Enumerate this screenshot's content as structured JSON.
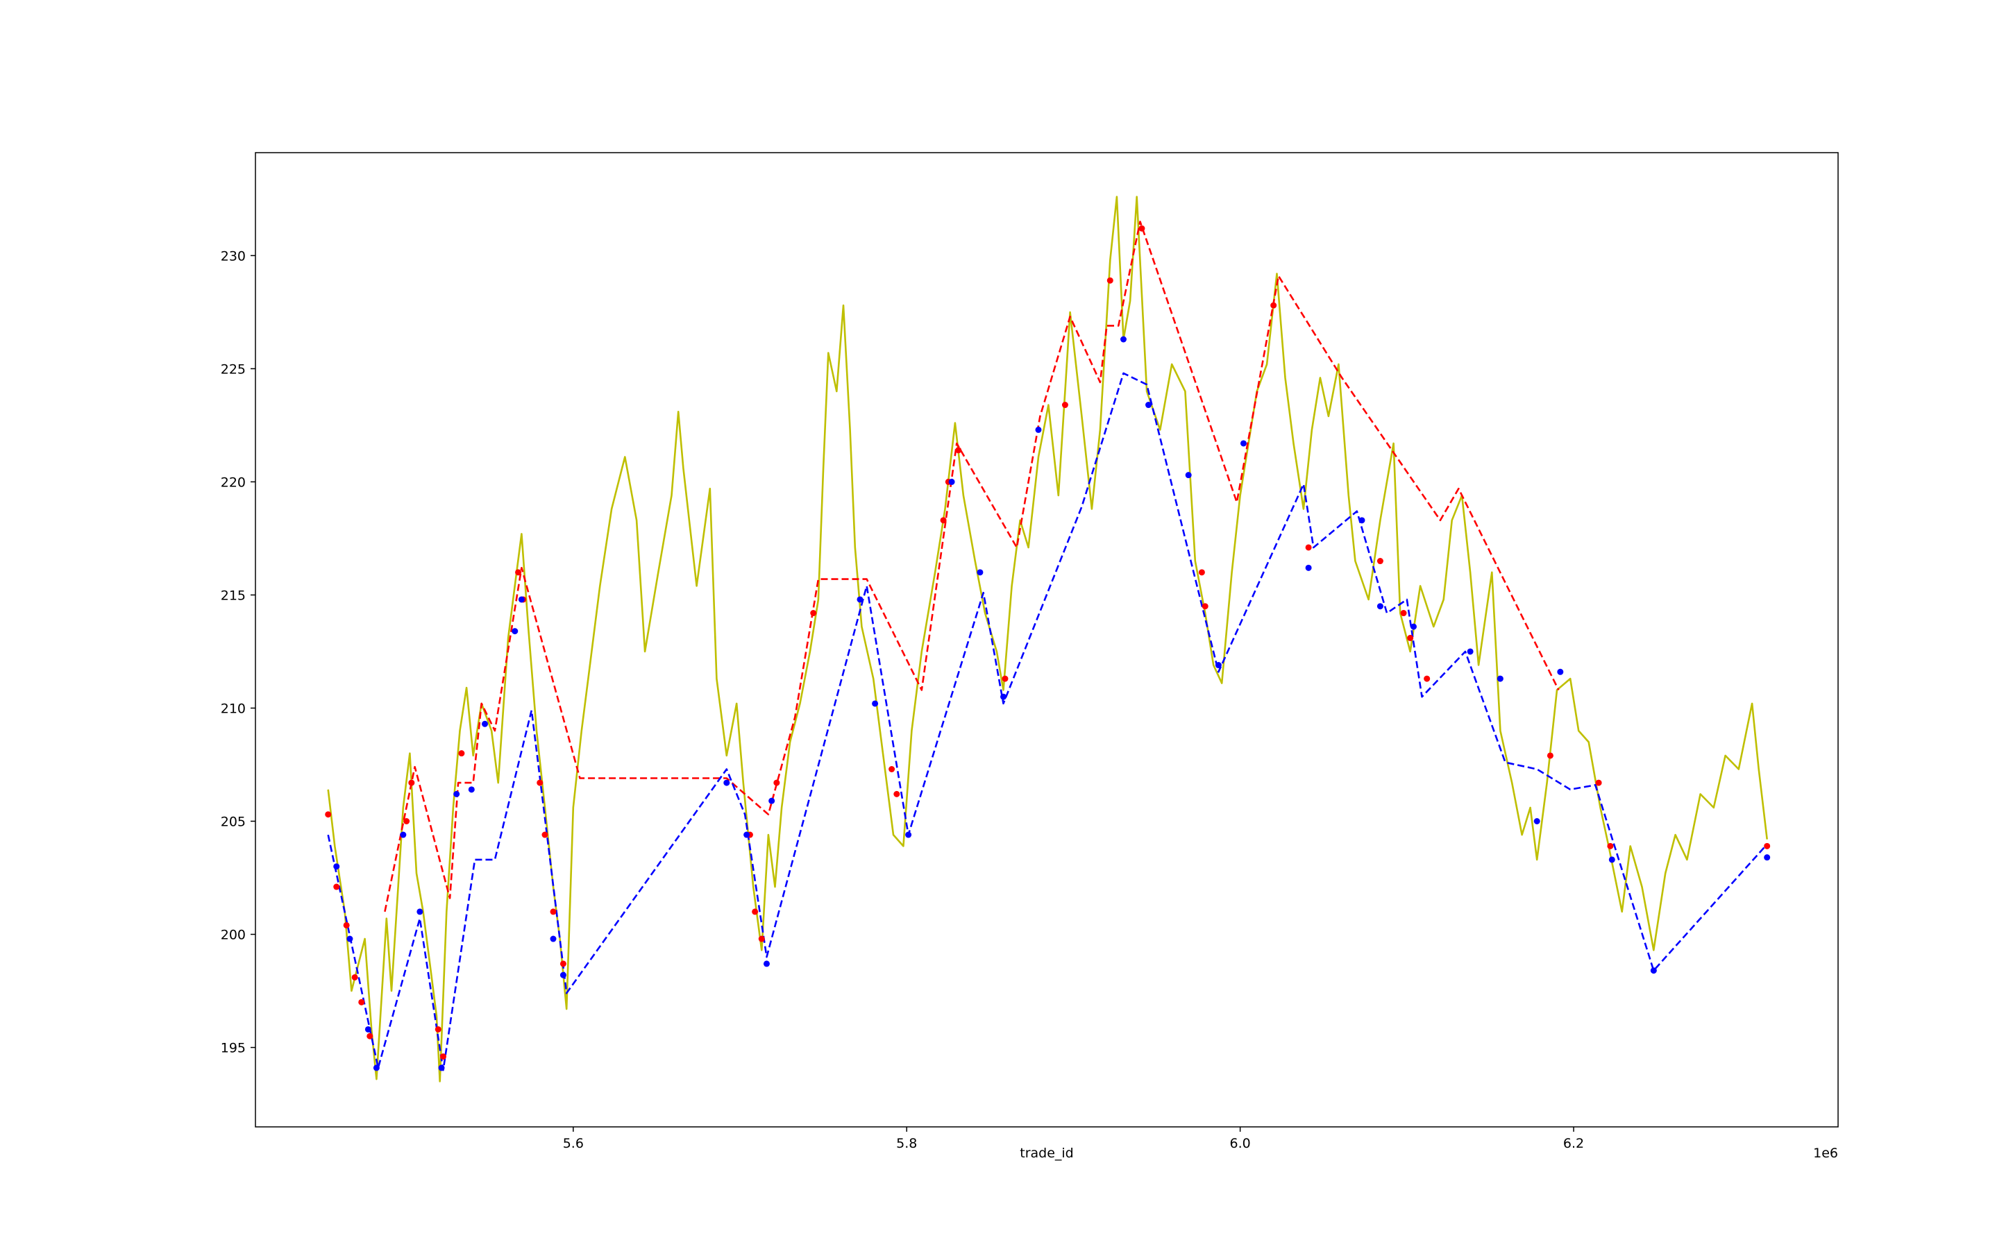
{
  "chart_data": {
    "type": "line",
    "xlabel": "trade_id",
    "x_offset_label": "1e6",
    "xlim": [
      5409400,
      6358600
    ],
    "ylim": [
      191.49,
      234.55
    ],
    "xticks": [
      {
        "value": 5600000,
        "label": "5.6"
      },
      {
        "value": 5800000,
        "label": "5.8"
      },
      {
        "value": 6000000,
        "label": "6.0"
      },
      {
        "value": 6200000,
        "label": "6.2"
      }
    ],
    "yticks": [
      195,
      200,
      205,
      210,
      215,
      220,
      225,
      230
    ],
    "grid": false,
    "series": [
      {
        "type": "line",
        "dashed": false,
        "color": "#bfbf00",
        "x": [
          5453000,
          5457000,
          5463000,
          5467000,
          5475000,
          5479000,
          5482000,
          5488000,
          5491000,
          5495000,
          5498000,
          5502000,
          5506000,
          5510000,
          5514000,
          5518000,
          5520000,
          5524000,
          5528000,
          5532000,
          5536000,
          5540000,
          5545000,
          5551000,
          5555000,
          5561000,
          5566000,
          5569000,
          5573000,
          5578000,
          5583000,
          5588000,
          5592000,
          5596000,
          5600000,
          5605000,
          5609000,
          5616000,
          5623000,
          5631000,
          5638000,
          5643000,
          5651000,
          5659000,
          5663000,
          5666000,
          5674000,
          5682000,
          5686000,
          5692000,
          5698000,
          5702000,
          5708000,
          5713000,
          5717000,
          5721000,
          5725000,
          5730000,
          5736000,
          5742000,
          5747000,
          5750000,
          5753000,
          5758000,
          5762000,
          5766000,
          5769000,
          5773000,
          5780000,
          5788000,
          5792000,
          5798000,
          5803000,
          5809000,
          5817000,
          5823000,
          5829000,
          5834000,
          5841000,
          5847000,
          5854000,
          5858000,
          5863000,
          5868000,
          5873000,
          5879000,
          5885000,
          5891000,
          5895000,
          5898000,
          5905000,
          5911000,
          5916000,
          5922000,
          5926000,
          5930000,
          5934000,
          5938000,
          5944000,
          5952000,
          5959000,
          5967000,
          5973000,
          5979000,
          5984000,
          5989000,
          5995000,
          6000000,
          6005000,
          6010000,
          6016000,
          6022000,
          6027000,
          6032000,
          6038000,
          6043000,
          6048000,
          6053000,
          6059000,
          6065000,
          6069000,
          6077000,
          6084000,
          6092000,
          6096000,
          6102000,
          6108000,
          6116000,
          6122000,
          6127000,
          6133000,
          6138000,
          6143000,
          6151000,
          6156000,
          6163000,
          6169000,
          6174000,
          6178000,
          6184000,
          6190000,
          6198000,
          6203000,
          6209000,
          6216000,
          6221000,
          6229000,
          6234000,
          6241000,
          6248000,
          6255000,
          6261000,
          6268000,
          6276000,
          6284000,
          6291000,
          6299000,
          6307000,
          6311000,
          6316000
        ],
        "values": [
          206.4,
          203.9,
          201.0,
          197.5,
          199.8,
          195.8,
          193.6,
          200.7,
          197.5,
          202.1,
          205.6,
          208.0,
          202.7,
          201.0,
          198.7,
          196.4,
          193.5,
          201.0,
          205.6,
          209.0,
          210.9,
          207.9,
          210.2,
          209.0,
          206.7,
          213.1,
          216.0,
          217.7,
          213.6,
          209.0,
          205.6,
          202.1,
          199.8,
          196.7,
          205.6,
          209.0,
          211.3,
          215.4,
          218.8,
          221.1,
          218.3,
          212.5,
          216.0,
          219.4,
          223.1,
          220.6,
          215.4,
          219.7,
          211.3,
          207.9,
          210.2,
          206.7,
          202.1,
          199.3,
          204.4,
          202.1,
          205.6,
          208.5,
          210.2,
          212.5,
          214.8,
          220.6,
          225.7,
          224.0,
          227.8,
          222.3,
          217.1,
          213.6,
          211.3,
          206.7,
          204.4,
          203.9,
          209.0,
          212.5,
          216.0,
          218.8,
          222.6,
          219.4,
          216.5,
          214.2,
          212.5,
          210.8,
          215.4,
          218.3,
          217.1,
          221.1,
          223.4,
          219.4,
          224.0,
          227.5,
          222.9,
          218.8,
          222.3,
          229.8,
          232.6,
          226.3,
          228.0,
          232.6,
          224.0,
          222.3,
          225.2,
          224.0,
          216.5,
          214.2,
          211.9,
          211.1,
          216.0,
          219.4,
          221.7,
          224.0,
          225.2,
          229.2,
          224.6,
          221.7,
          218.8,
          222.3,
          224.6,
          222.9,
          225.2,
          219.4,
          216.5,
          214.8,
          218.3,
          221.7,
          214.2,
          212.5,
          215.4,
          213.6,
          214.8,
          218.3,
          219.4,
          216.0,
          211.9,
          216.0,
          209.0,
          206.7,
          204.4,
          205.6,
          203.3,
          206.7,
          210.8,
          211.3,
          209.0,
          208.5,
          205.6,
          203.9,
          201.0,
          203.9,
          202.1,
          199.3,
          202.7,
          204.4,
          203.3,
          206.2,
          205.6,
          207.9,
          207.3,
          210.2,
          207.3,
          204.2
        ]
      },
      {
        "type": "line",
        "dashed": true,
        "color": "#ff0000",
        "x": [
          5487000,
          5505000,
          5526000,
          5531000,
          5540000,
          5545000,
          5553000,
          5569000,
          5604000,
          5692000,
          5717000,
          5733000,
          5747000,
          5776000,
          5809000,
          5830000,
          5866000,
          5880000,
          5898000,
          5916000,
          5920000,
          5927000,
          5940000,
          5998000,
          6023000,
          6061000,
          6120000,
          6131000,
          6191000
        ],
        "values": [
          201.0,
          207.4,
          201.6,
          206.7,
          206.7,
          210.2,
          209.0,
          216.2,
          206.9,
          206.9,
          205.3,
          209.6,
          215.7,
          215.7,
          210.8,
          221.7,
          217.1,
          222.9,
          227.3,
          224.4,
          226.9,
          226.9,
          231.5,
          219.1,
          229.1,
          224.6,
          218.3,
          219.7,
          210.8
        ]
      },
      {
        "type": "line",
        "dashed": true,
        "color": "#0000ff",
        "x": [
          5453000,
          5483000,
          5508000,
          5522000,
          5541000,
          5553000,
          5575000,
          5596000,
          5692000,
          5703000,
          5716000,
          5776000,
          5801000,
          5846000,
          5858000,
          5905000,
          5930000,
          5944000,
          5987000,
          6038000,
          6044000,
          6070000,
          6088000,
          6100000,
          6109000,
          6135000,
          6159000,
          6178000,
          6198000,
          6213000,
          6248000,
          6315000
        ],
        "values": [
          204.4,
          194.1,
          200.7,
          194.0,
          203.3,
          203.3,
          209.9,
          197.4,
          207.3,
          205.3,
          199.0,
          215.4,
          204.4,
          215.1,
          210.2,
          218.9,
          224.8,
          224.3,
          211.6,
          219.9,
          217.1,
          218.7,
          214.2,
          214.8,
          210.5,
          212.5,
          207.6,
          207.3,
          206.4,
          206.6,
          198.4,
          203.9
        ]
      },
      {
        "type": "scatter",
        "color": "#ff0000",
        "x": [
          5453000,
          5458000,
          5464000,
          5469000,
          5473000,
          5478000,
          5500000,
          5503000,
          5519000,
          5522000,
          5533000,
          5567000,
          5570000,
          5580000,
          5583000,
          5588000,
          5594000,
          5706000,
          5709000,
          5713000,
          5722000,
          5744000,
          5791000,
          5794000,
          5822000,
          5825000,
          5831000,
          5859000,
          5895000,
          5922000,
          5941000,
          5977000,
          5979000,
          6020000,
          6041000,
          6084000,
          6098000,
          6102000,
          6112000,
          6186000,
          6215000,
          6222000,
          6316000
        ],
        "values": [
          205.3,
          202.1,
          200.4,
          198.1,
          197.0,
          195.5,
          205.0,
          206.7,
          195.8,
          194.6,
          208.0,
          216.0,
          214.8,
          206.7,
          204.4,
          201.0,
          198.7,
          204.4,
          201.0,
          199.8,
          206.7,
          214.2,
          207.3,
          206.2,
          218.3,
          220.0,
          221.4,
          211.3,
          223.4,
          228.9,
          231.2,
          216.0,
          214.5,
          227.8,
          217.1,
          216.5,
          214.2,
          213.1,
          211.3,
          207.9,
          206.7,
          203.9,
          203.9
        ]
      },
      {
        "type": "scatter",
        "color": "#0000ff",
        "x": [
          5458000,
          5466000,
          5477000,
          5482000,
          5498000,
          5508000,
          5521000,
          5530000,
          5539000,
          5547000,
          5565000,
          5569000,
          5588000,
          5594000,
          5692000,
          5704000,
          5716000,
          5719000,
          5772000,
          5781000,
          5801000,
          5827000,
          5844000,
          5858000,
          5879000,
          5930000,
          5945000,
          5969000,
          5987000,
          6002000,
          6041000,
          6073000,
          6084000,
          6104000,
          6138000,
          6156000,
          6178000,
          6192000,
          6223000,
          6248000,
          6316000
        ],
        "values": [
          203.0,
          199.8,
          195.8,
          194.1,
          204.4,
          201.0,
          194.1,
          206.2,
          206.4,
          209.3,
          213.4,
          214.8,
          199.8,
          198.2,
          206.7,
          204.4,
          198.7,
          205.9,
          214.8,
          210.2,
          204.4,
          220.0,
          216.0,
          210.5,
          222.3,
          226.3,
          223.4,
          220.3,
          211.9,
          221.7,
          216.2,
          218.3,
          214.5,
          213.6,
          212.5,
          211.3,
          205.0,
          211.6,
          203.3,
          198.4,
          203.4
        ]
      }
    ]
  }
}
